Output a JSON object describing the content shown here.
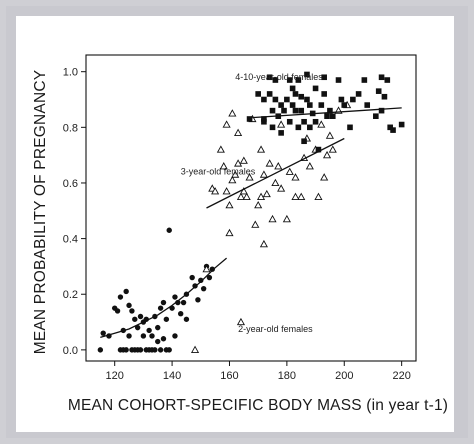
{
  "chart_data": {
    "type": "scatter",
    "xlabel": "MEAN COHORT-SPECIFIC BODY MASS (in year t-1)",
    "ylabel": "MEAN PROBABILITY OF PREGNANCY",
    "xlim": [
      110,
      225
    ],
    "ylim": [
      -0.04,
      1.06
    ],
    "x_ticks": [
      120,
      140,
      160,
      180,
      200,
      220
    ],
    "y_ticks": [
      0.0,
      0.2,
      0.4,
      0.6,
      0.8,
      1.0
    ],
    "x_tick_labels": [
      "120",
      "140",
      "160",
      "180",
      "200",
      "220"
    ],
    "y_tick_labels": [
      "0.0",
      "0.2",
      "0.4",
      "0.6",
      "0.8",
      "1.0"
    ],
    "grid": false,
    "colors": {
      "marks": "#111111",
      "frame": "#c9c9cf",
      "panel": "#ffffff"
    },
    "annotations": [
      {
        "text": "4-10-year-old females",
        "x": 162,
        "y": 0.97
      },
      {
        "text": "3-year-old females",
        "x": 143,
        "y": 0.63
      },
      {
        "text": "2-year-old females",
        "x": 163,
        "y": 0.065
      }
    ],
    "series": [
      {
        "marker": "circle",
        "points": [
          [
            115,
            0.0
          ],
          [
            116,
            0.06
          ],
          [
            118,
            0.05
          ],
          [
            120,
            0.15
          ],
          [
            121,
            0.14
          ],
          [
            122,
            0.0
          ],
          [
            122,
            0.19
          ],
          [
            123,
            0.07
          ],
          [
            123,
            0.0
          ],
          [
            124,
            0.21
          ],
          [
            124,
            0.0
          ],
          [
            125,
            0.16
          ],
          [
            125,
            0.05
          ],
          [
            126,
            0.0
          ],
          [
            126,
            0.14
          ],
          [
            127,
            0.11
          ],
          [
            127,
            0.0
          ],
          [
            128,
            0.08
          ],
          [
            128,
            0.0
          ],
          [
            129,
            0.12
          ],
          [
            129,
            0.0
          ],
          [
            130,
            0.1
          ],
          [
            130,
            0.05
          ],
          [
            131,
            0.0
          ],
          [
            131,
            0.11
          ],
          [
            132,
            0.07
          ],
          [
            132,
            0.0
          ],
          [
            133,
            0.05
          ],
          [
            133,
            0.0
          ],
          [
            134,
            0.12
          ],
          [
            134,
            0.0
          ],
          [
            135,
            0.08
          ],
          [
            135,
            0.03
          ],
          [
            136,
            0.15
          ],
          [
            136,
            0.0
          ],
          [
            137,
            0.17
          ],
          [
            137,
            0.04
          ],
          [
            138,
            0.11
          ],
          [
            138,
            0.0
          ],
          [
            139,
            0.43
          ],
          [
            139,
            0.0
          ],
          [
            140,
            0.15
          ],
          [
            141,
            0.19
          ],
          [
            141,
            0.05
          ],
          [
            142,
            0.17
          ],
          [
            143,
            0.13
          ],
          [
            144,
            0.17
          ],
          [
            145,
            0.11
          ],
          [
            145,
            0.2
          ],
          [
            147,
            0.26
          ],
          [
            148,
            0.23
          ],
          [
            149,
            0.18
          ],
          [
            150,
            0.25
          ],
          [
            151,
            0.22
          ],
          [
            152,
            0.3
          ],
          [
            153,
            0.26
          ],
          [
            154,
            0.29
          ]
        ]
      },
      {
        "marker": "triangle",
        "points": [
          [
            148,
            0.0
          ],
          [
            152,
            0.29
          ],
          [
            154,
            0.58
          ],
          [
            155,
            0.57
          ],
          [
            157,
            0.72
          ],
          [
            158,
            0.66
          ],
          [
            159,
            0.57
          ],
          [
            160,
            0.52
          ],
          [
            160,
            0.42
          ],
          [
            161,
            0.61
          ],
          [
            162,
            0.63
          ],
          [
            163,
            0.67
          ],
          [
            164,
            0.1
          ],
          [
            164,
            0.55
          ],
          [
            165,
            0.57
          ],
          [
            165,
            0.68
          ],
          [
            166,
            0.55
          ],
          [
            167,
            0.62
          ],
          [
            168,
            0.83
          ],
          [
            169,
            0.45
          ],
          [
            170,
            0.52
          ],
          [
            171,
            0.55
          ],
          [
            172,
            0.63
          ],
          [
            172,
            0.38
          ],
          [
            173,
            0.56
          ],
          [
            174,
            0.67
          ],
          [
            175,
            0.47
          ],
          [
            176,
            0.6
          ],
          [
            177,
            0.66
          ],
          [
            178,
            0.81
          ],
          [
            178,
            0.58
          ],
          [
            180,
            0.47
          ],
          [
            181,
            0.64
          ],
          [
            183,
            0.62
          ],
          [
            185,
            0.55
          ],
          [
            187,
            0.76
          ],
          [
            188,
            0.66
          ],
          [
            190,
            0.72
          ],
          [
            191,
            0.55
          ],
          [
            192,
            0.81
          ],
          [
            193,
            0.62
          ],
          [
            194,
            0.7
          ],
          [
            195,
            0.77
          ],
          [
            196,
            0.72
          ],
          [
            198,
            0.86
          ],
          [
            201,
            0.88
          ],
          [
            159,
            0.81
          ],
          [
            161,
            0.85
          ],
          [
            163,
            0.78
          ],
          [
            171,
            0.72
          ],
          [
            183,
            0.55
          ],
          [
            186,
            0.69
          ]
        ]
      },
      {
        "marker": "square",
        "points": [
          [
            167,
            0.83
          ],
          [
            170,
            0.92
          ],
          [
            172,
            0.9
          ],
          [
            172,
            0.82
          ],
          [
            174,
            0.92
          ],
          [
            174,
            0.98
          ],
          [
            175,
            0.86
          ],
          [
            175,
            0.8
          ],
          [
            176,
            0.9
          ],
          [
            176,
            0.97
          ],
          [
            177,
            0.84
          ],
          [
            178,
            0.78
          ],
          [
            178,
            0.88
          ],
          [
            179,
            0.86
          ],
          [
            180,
            0.9
          ],
          [
            181,
            0.82
          ],
          [
            181,
            0.97
          ],
          [
            182,
            0.94
          ],
          [
            182,
            0.88
          ],
          [
            183,
            0.86
          ],
          [
            184,
            0.8
          ],
          [
            184,
            0.97
          ],
          [
            185,
            0.91
          ],
          [
            185,
            0.86
          ],
          [
            186,
            0.82
          ],
          [
            186,
            0.75
          ],
          [
            187,
            0.99
          ],
          [
            187,
            0.9
          ],
          [
            188,
            0.88
          ],
          [
            188,
            0.8
          ],
          [
            189,
            0.85
          ],
          [
            190,
            0.94
          ],
          [
            190,
            0.82
          ],
          [
            191,
            0.72
          ],
          [
            192,
            0.88
          ],
          [
            193,
            0.92
          ],
          [
            193,
            0.98
          ],
          [
            194,
            0.84
          ],
          [
            195,
            0.86
          ],
          [
            196,
            0.84
          ],
          [
            198,
            0.97
          ],
          [
            199,
            0.9
          ],
          [
            200,
            0.88
          ],
          [
            202,
            0.8
          ],
          [
            203,
            0.9
          ],
          [
            205,
            0.92
          ],
          [
            207,
            0.97
          ],
          [
            208,
            0.88
          ],
          [
            211,
            0.84
          ],
          [
            212,
            0.93
          ],
          [
            213,
            0.98
          ],
          [
            213,
            0.86
          ],
          [
            214,
            0.91
          ],
          [
            215,
            0.97
          ],
          [
            216,
            0.8
          ],
          [
            217,
            0.79
          ],
          [
            220,
            0.81
          ],
          [
            172,
            0.83
          ],
          [
            183,
            0.92
          ]
        ]
      }
    ],
    "fit_lines": [
      {
        "points": [
          [
            115,
            0.045
          ],
          [
            120,
            0.06
          ],
          [
            125,
            0.075
          ],
          [
            130,
            0.1
          ],
          [
            135,
            0.125
          ],
          [
            140,
            0.16
          ],
          [
            145,
            0.2
          ],
          [
            150,
            0.245
          ],
          [
            155,
            0.295
          ],
          [
            159,
            0.33
          ]
        ]
      },
      {
        "points": [
          [
            152,
            0.51
          ],
          [
            200,
            0.76
          ]
        ]
      },
      {
        "points": [
          [
            168,
            0.835
          ],
          [
            220,
            0.87
          ]
        ]
      }
    ]
  }
}
